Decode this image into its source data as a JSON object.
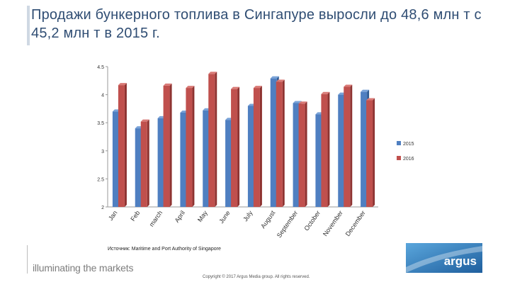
{
  "header": {
    "title": "Продажи бункерного топлива в Сингапуре выросли до 48,6 млн т с 45,2 млн т в 2015 г."
  },
  "chart_data": {
    "type": "bar",
    "categories": [
      "Jan",
      "Feb",
      "march",
      "April",
      "May",
      "June",
      "July",
      "August",
      "September",
      "October",
      "November",
      "December"
    ],
    "series": [
      {
        "name": "2015",
        "values": [
          3.7,
          3.4,
          3.58,
          3.68,
          3.72,
          3.55,
          3.8,
          4.29,
          3.85,
          3.65,
          4.0,
          4.05
        ]
      },
      {
        "name": "2016",
        "values": [
          4.17,
          3.52,
          4.16,
          4.12,
          4.37,
          4.1,
          4.12,
          4.23,
          3.84,
          4.01,
          4.14,
          3.9
        ]
      }
    ],
    "yticks": [
      "2",
      "2.5",
      "3",
      "3.5",
      "4",
      "4.5"
    ],
    "ylim": [
      2,
      4.5
    ],
    "legend_position": "right",
    "grid": false,
    "colors": {
      "2015": "#4f7fc1",
      "2016": "#c0504d"
    }
  },
  "footer": {
    "source": "Источник: Maritime and Port Authority of Singapore",
    "tagline": "illuminating the markets",
    "copyright": "Copyright © 2017 Argus Media group. All rights reserved.",
    "logo_text": "argus",
    "logo_color": "#2e6fb0"
  }
}
